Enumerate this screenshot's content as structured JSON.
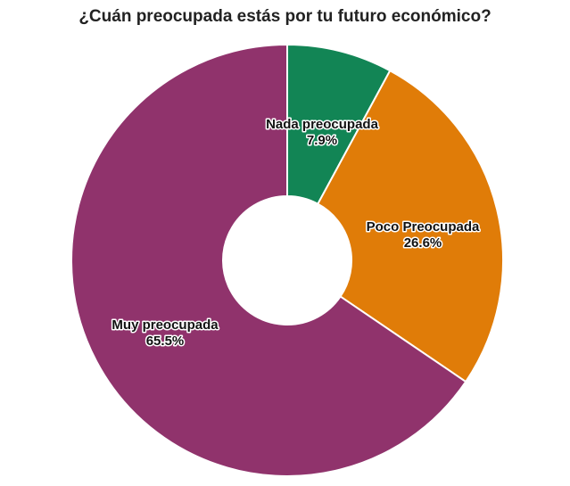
{
  "chart_data": {
    "type": "pie",
    "title": "¿Cuán preocupada estás por tu futuro económico?",
    "donut": true,
    "categories": [
      "Nada preocupada",
      "Poco Preocupada",
      "Muy preocupada"
    ],
    "values": [
      7.9,
      26.6,
      65.5
    ],
    "value_labels": [
      "7.9%",
      "26.6%",
      "65.5%"
    ],
    "colors": [
      "#128555",
      "#e07c08",
      "#90336c"
    ],
    "start": "12 o'clock, clockwise",
    "legend": "none"
  }
}
